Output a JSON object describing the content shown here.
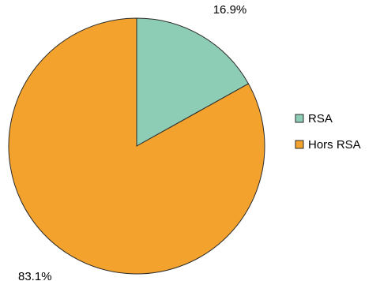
{
  "chart_data": {
    "type": "pie",
    "categories": [
      "RSA",
      "Hors RSA"
    ],
    "values": [
      16.9,
      83.1
    ],
    "labels": [
      "16.9%",
      "83.1%"
    ],
    "colors": [
      "#8ecdb5",
      "#f2a22d"
    ],
    "start_angle_deg": 0,
    "direction": "clockwise",
    "legend_position": "right",
    "title": ""
  }
}
